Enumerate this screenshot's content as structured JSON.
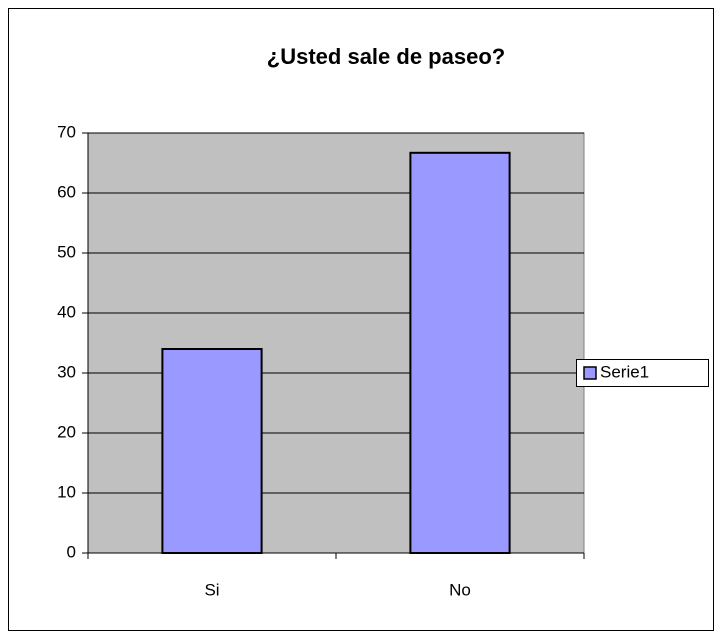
{
  "chart_data": {
    "type": "bar",
    "title": "¿Usted sale de paseo?",
    "categories": [
      "Si",
      "No"
    ],
    "series": [
      {
        "name": "Serie1",
        "color": "#9999ff",
        "values": [
          34,
          66.7
        ]
      }
    ],
    "ylim": [
      0,
      70
    ],
    "yticks": [
      0,
      10,
      20,
      30,
      40,
      50,
      60,
      70
    ],
    "grid": true,
    "legend": "right"
  }
}
